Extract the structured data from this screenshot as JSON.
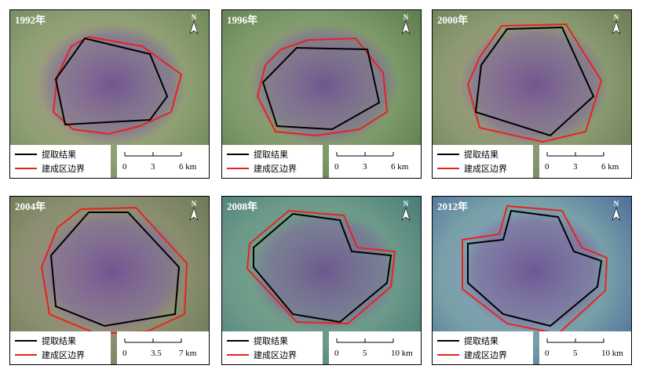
{
  "panels": [
    {
      "year": "1992年",
      "legend": [
        "提取结果",
        "建成区边界"
      ],
      "scale": [
        "0",
        "3",
        "6 km"
      ],
      "north": "N"
    },
    {
      "year": "1996年",
      "legend": [
        "提取结果",
        "建成区边界"
      ],
      "scale": [
        "0",
        "3",
        "6 km"
      ],
      "north": "N"
    },
    {
      "year": "2000年",
      "legend": [
        "提取结果",
        "建成区边界"
      ],
      "scale": [
        "0",
        "3",
        "6 km"
      ],
      "north": "N"
    },
    {
      "year": "2004年",
      "legend": [
        "提取结果",
        "建成区边界"
      ],
      "scale": [
        "0",
        "3.5",
        "7 km"
      ],
      "north": "N"
    },
    {
      "year": "2008年",
      "legend": [
        "提取结果",
        "建成区边界"
      ],
      "scale": [
        "0",
        "5",
        "10 km"
      ],
      "north": "N"
    },
    {
      "year": "2012年",
      "legend": [
        "提取结果",
        "建成区边界"
      ],
      "scale": [
        "0",
        "5",
        "10 km"
      ],
      "north": "N"
    }
  ]
}
